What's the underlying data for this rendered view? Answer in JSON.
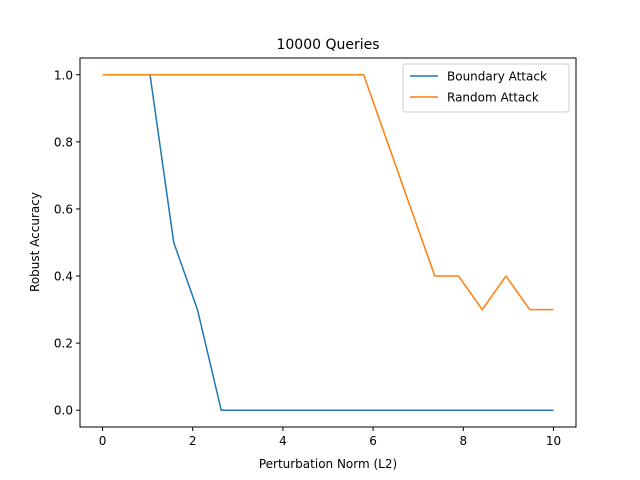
{
  "chart_data": {
    "type": "line",
    "title": "10000 Queries",
    "xlabel": "Perturbation Norm (L2)",
    "ylabel": "Robust Accuracy",
    "xlim": [
      -0.5,
      10.5
    ],
    "ylim": [
      -0.05,
      1.05
    ],
    "xticks": [
      0,
      2,
      4,
      6,
      8,
      10
    ],
    "yticks": [
      0.0,
      0.2,
      0.4,
      0.6,
      0.8,
      1.0
    ],
    "xtick_labels": [
      "0",
      "2",
      "4",
      "6",
      "8",
      "10"
    ],
    "ytick_labels": [
      "0.0",
      "0.2",
      "0.4",
      "0.6",
      "0.8",
      "1.0"
    ],
    "x": [
      0.0,
      0.526,
      1.053,
      1.579,
      2.105,
      2.632,
      3.158,
      3.684,
      4.211,
      4.737,
      5.263,
      5.789,
      6.316,
      6.842,
      7.368,
      7.895,
      8.421,
      8.947,
      9.474,
      10.0
    ],
    "series": [
      {
        "name": "Boundary Attack",
        "color": "#1f77b4",
        "values": [
          1.0,
          1.0,
          1.0,
          0.5,
          0.3,
          0.0,
          0.0,
          0.0,
          0.0,
          0.0,
          0.0,
          0.0,
          0.0,
          0.0,
          0.0,
          0.0,
          0.0,
          0.0,
          0.0,
          0.0
        ]
      },
      {
        "name": "Random Attack",
        "color": "#ff7f0e",
        "values": [
          1.0,
          1.0,
          1.0,
          1.0,
          1.0,
          1.0,
          1.0,
          1.0,
          1.0,
          1.0,
          1.0,
          1.0,
          0.8,
          0.6,
          0.4,
          0.4,
          0.3,
          0.4,
          0.3,
          0.3
        ]
      }
    ],
    "grid": false,
    "legend_position": "top-right"
  }
}
